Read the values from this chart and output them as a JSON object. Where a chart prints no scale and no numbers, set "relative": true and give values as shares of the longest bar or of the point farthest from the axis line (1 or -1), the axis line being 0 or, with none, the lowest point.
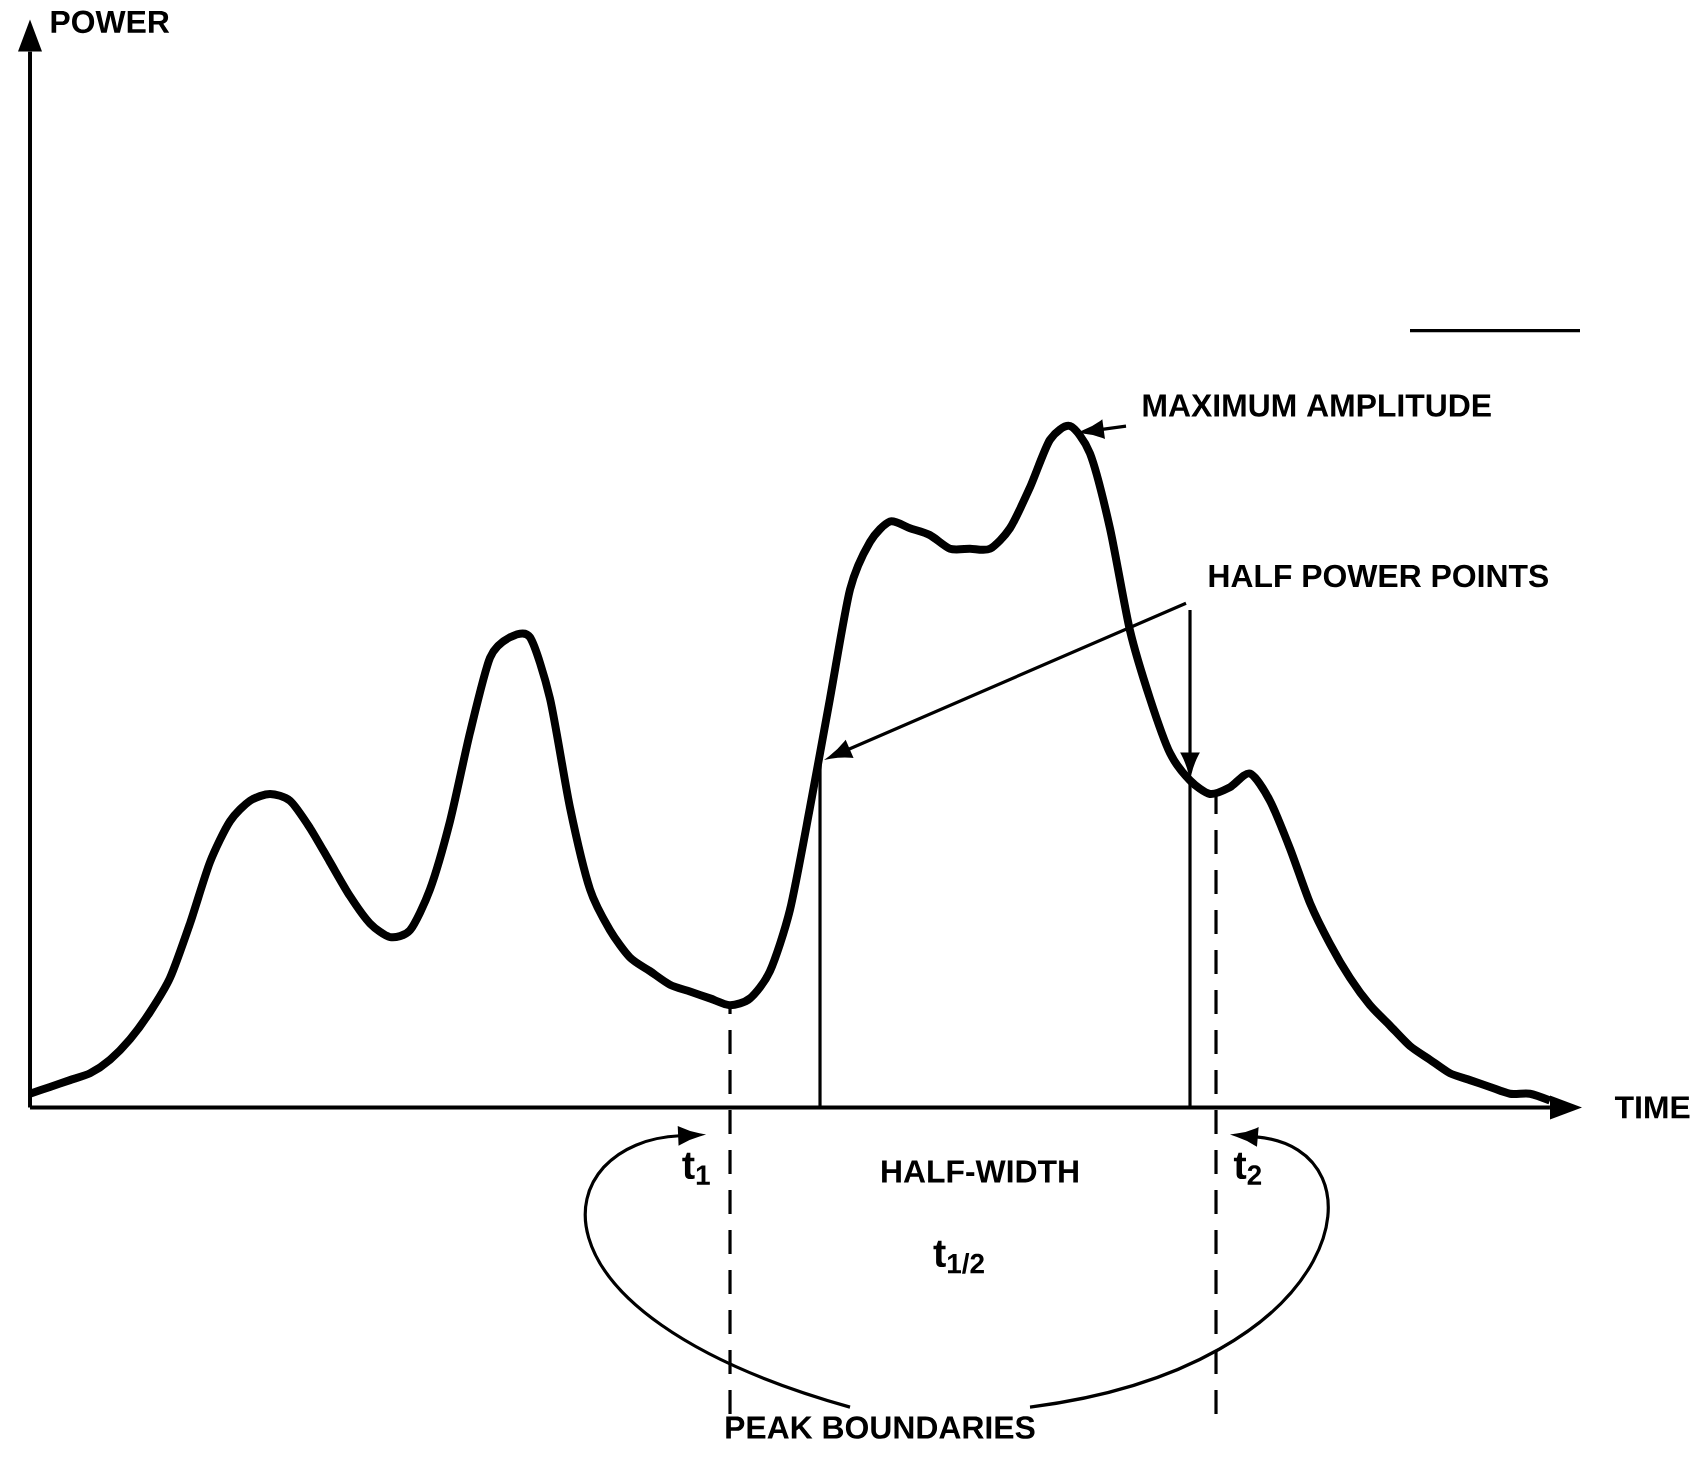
{
  "chart_data": {
    "type": "line",
    "relative": true,
    "xlabel": "TIME",
    "categories": [
      null,
      null,
      null,
      null,
      null,
      null,
      null,
      null,
      null,
      null,
      null,
      null,
      null,
      null,
      null,
      null,
      null,
      null,
      null,
      null,
      null,
      null,
      null,
      null,
      null,
      null,
      null,
      null,
      null,
      null,
      null,
      null,
      null,
      null,
      null,
      null,
      null,
      null,
      null,
      null,
      null,
      null,
      null,
      null,
      null,
      null,
      null,
      null,
      null,
      null,
      null,
      null,
      null,
      null,
      null,
      null,
      null,
      null,
      null,
      null,
      null,
      null,
      null,
      null,
      null,
      null,
      null,
      null,
      null,
      null,
      null,
      null,
      null,
      null,
      null,
      null,
      null
    ],
    "series": [
      {
        "color": "#000000",
        "values": [
          0.02,
          0.03,
          0.04,
          0.05,
          0.07,
          0.1,
          0.14,
          0.19,
          0.27,
          0.36,
          0.42,
          0.45,
          0.46,
          0.45,
          0.41,
          0.36,
          0.31,
          0.27,
          0.25,
          0.26,
          0.32,
          0.42,
          0.55,
          0.66,
          0.69,
          0.69,
          0.6,
          0.44,
          0.32,
          0.26,
          0.22,
          0.2,
          0.18,
          0.17,
          0.16,
          0.15,
          0.16,
          0.2,
          0.29,
          0.44,
          0.6,
          0.76,
          0.83,
          0.86,
          0.85,
          0.84,
          0.82,
          0.82,
          0.82,
          0.85,
          0.91,
          0.98,
          1.0,
          0.96,
          0.85,
          0.7,
          0.6,
          0.52,
          0.48,
          0.46,
          0.47,
          0.49,
          0.45,
          0.38,
          0.3,
          0.24,
          0.19,
          0.15,
          0.12,
          0.09,
          0.07,
          0.05,
          0.04,
          0.03,
          0.02,
          0.02,
          0.01
        ]
      }
    ],
    "annotations": [
      "MAXIMUM AMPLITUDE",
      "HALF POWER POINTS",
      "HALF-WIDTH",
      "t$_{1/2}$",
      "PEAK BOUNDARIES",
      "t$_{1}$",
      "t$_{2}$",
      "POWER"
    ],
    "marker": "none",
    "line_style": "solid"
  }
}
